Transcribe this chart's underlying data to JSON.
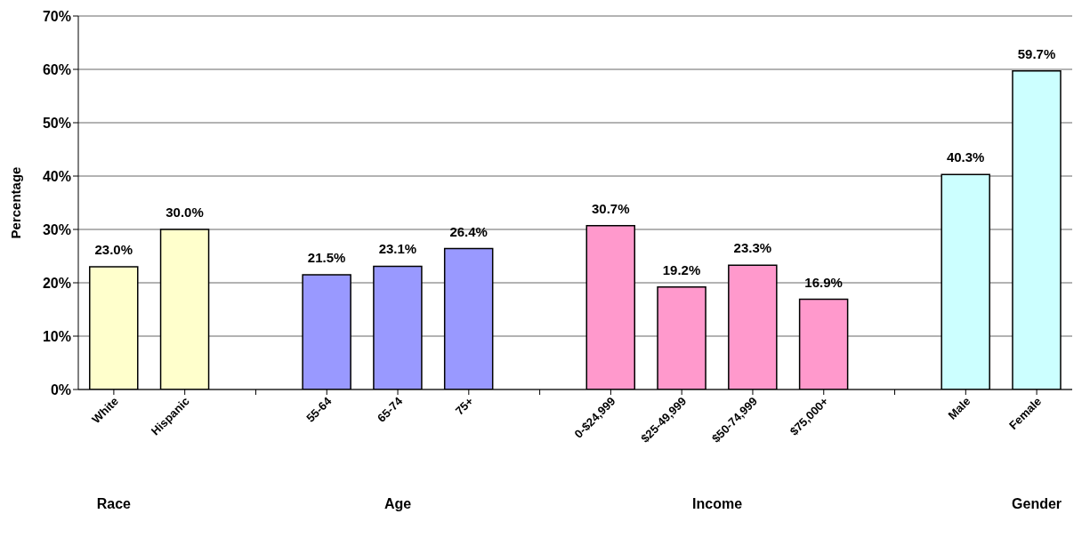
{
  "chart_data": {
    "type": "bar",
    "ylabel": "Percentage",
    "categories": [
      "White",
      "Hispanic",
      null,
      "55-64",
      "65-74",
      "75+",
      null,
      "0-$24,999",
      "$25-49,999",
      "$50-74,999",
      "$75,000+",
      null,
      "Male",
      "Female"
    ],
    "values": [
      23.0,
      30.0,
      null,
      21.5,
      23.1,
      26.4,
      null,
      30.7,
      19.2,
      23.3,
      16.9,
      null,
      40.3,
      59.7
    ],
    "value_labels": [
      "23.0%",
      "30.0%",
      null,
      "21.5%",
      "23.1%",
      "26.4%",
      null,
      "30.7%",
      "19.2%",
      "23.3%",
      "16.9%",
      null,
      "40.3%",
      "59.7%"
    ],
    "colors": [
      "#ffffcc",
      "#ffffcc",
      null,
      "#9999ff",
      "#9999ff",
      "#9999ff",
      null,
      "#ff99cc",
      "#ff99cc",
      "#ff99cc",
      "#ff99cc",
      null,
      "#ccffff",
      "#ccffff"
    ],
    "ylim": [
      0,
      70
    ],
    "yticks": [
      {
        "value": 0,
        "label": "0%"
      },
      {
        "value": 10,
        "label": "10%"
      },
      {
        "value": 20,
        "label": "20%"
      },
      {
        "value": 30,
        "label": "30%"
      },
      {
        "value": 40,
        "label": "40%"
      },
      {
        "value": 50,
        "label": "50%"
      },
      {
        "value": 60,
        "label": "60%"
      },
      {
        "value": 70,
        "label": "70%"
      }
    ],
    "grid": "y",
    "annotations": [
      "Race",
      "Age",
      "Income",
      "Gender"
    ]
  }
}
